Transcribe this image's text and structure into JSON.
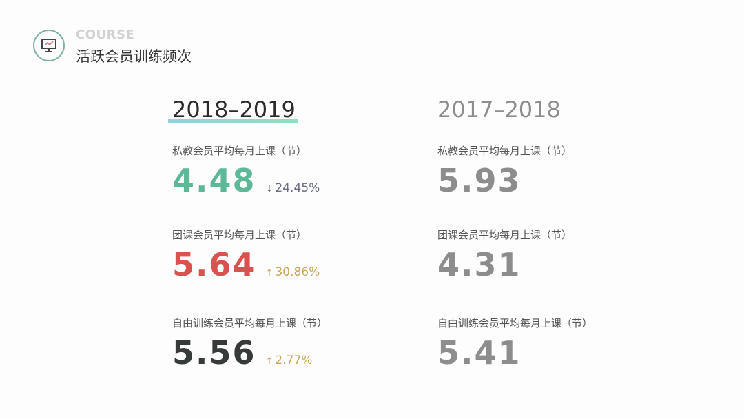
{
  "header": {
    "course": "COURSE",
    "title": "活跃会员训练频次",
    "icon": "monitor-chart-icon"
  },
  "columns": [
    {
      "year": "2018–2019",
      "metrics": [
        {
          "label": "私教会员平均每月上课（节）",
          "value": "4.48",
          "color": "#5cb897",
          "change": "24.45%",
          "direction": "down",
          "change_color": "#6a6d80"
        },
        {
          "label": "团课会员平均每月上课（节）",
          "value": "5.64",
          "color": "#d9524f",
          "change": "30.86%",
          "direction": "up",
          "change_color": "#c9a55a"
        },
        {
          "label": "自由训练会员平均每月上课（节）",
          "value": "5.56",
          "color": "#363b39",
          "change": "2.77%",
          "direction": "up",
          "change_color": "#c9a55a"
        }
      ]
    },
    {
      "year": "2017–2018",
      "metrics": [
        {
          "label": "私教会员平均每月上课（节）",
          "value": "5.93",
          "color": "#8d8d8d"
        },
        {
          "label": "团课会员平均每月上课（节）",
          "value": "4.31",
          "color": "#8d8d8d"
        },
        {
          "label": "自由训练会员平均每月上课（节）",
          "value": "5.41",
          "color": "#8d8d8d"
        }
      ]
    }
  ],
  "arrows": {
    "up": "↑",
    "down": "↓"
  }
}
